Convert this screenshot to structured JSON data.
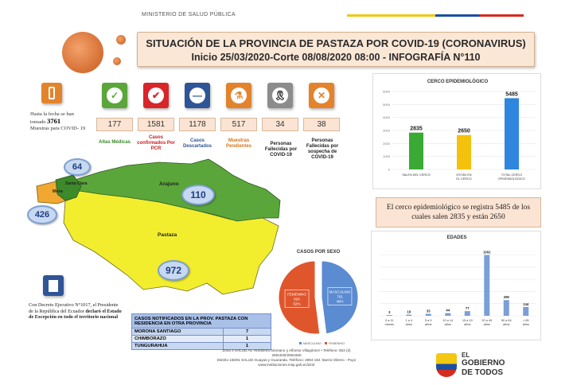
{
  "header": {
    "ministry": "MINISTERIO DE SALUD PÚBLICA",
    "title_line1": "SITUACIÓN DE LA PROVINCIA DE PASTAZA POR COVID-19 (CORONAVIRUS)",
    "title_line2": "Inicio 25/03/2020-Corte 08/08/2020 08:00 - INFOGRAFÍA N°110"
  },
  "side_note": {
    "prefix": "Hasta la fecha se han tomado",
    "value": "3761",
    "suffix": "Muestras para COVID- 19"
  },
  "stats": [
    {
      "value": "177",
      "caption": "Altas Médicas",
      "color": "#5aa63a",
      "caption_color": "#3c8a2a",
      "icon": "medical-discharge-icon"
    },
    {
      "value": "1581",
      "caption": "Casos confirmados Por PCR",
      "color": "#d8252a",
      "caption_color": "#c81d1d",
      "icon": "check-icon"
    },
    {
      "value": "1178",
      "caption": "Casos Descartados",
      "color": "#2f5597",
      "caption_color": "#2f5597",
      "icon": "minus-icon"
    },
    {
      "value": "517",
      "caption": "Muestras Pendientes",
      "color": "#e3832c",
      "caption_color": "#d4741a",
      "icon": "sample-pending-icon"
    },
    {
      "value": "34",
      "caption": "Personas Fallecidas por COVID-19",
      "color": "#8c8c8c",
      "caption_color": "#222",
      "icon": "mourning-ribbon-icon"
    },
    {
      "value": "38",
      "caption": "Personas Fallecidas por sospecha de COVID-19",
      "color": "#e3832c",
      "caption_color": "#222",
      "icon": "persons-x-icon"
    }
  ],
  "map": {
    "region_arajuno": "Arajuno",
    "region_pastaza": "Pastaza",
    "region_mera": "Mera",
    "region_santa_clara": "Santa Clara",
    "bubble_64": "64",
    "bubble_426": "426",
    "bubble_110": "110",
    "bubble_972": "972",
    "colors": {
      "arajuno": "#5aa63a",
      "pastaza": "#f2ee2e",
      "mera": "#f0a830",
      "santa_clara": "#5aa63a"
    }
  },
  "cerco_chart": {
    "chart_data": {
      "type": "bar",
      "title": "CERCO EPIDEMIOLÓGICO",
      "categories": [
        "SALEN DEL CERCO",
        "ESTÁN EN EL CERCO",
        "TOTAL CERCO EPIDEMIOLÓGICO"
      ],
      "values": [
        2835,
        2650,
        5485
      ],
      "colors": [
        "#3aaa35",
        "#f4c20d",
        "#2e86de"
      ],
      "yticks": [
        "0",
        "1000",
        "2000",
        "3000",
        "4000",
        "5000",
        "6000"
      ],
      "ylim": [
        0,
        6000
      ],
      "grid": true
    }
  },
  "cerco_info": "El cerco epidemiológico se registra 5485 de los cuales salen 2835 y están 2650",
  "sex_chart": {
    "chart_data": {
      "type": "pie",
      "title": "CASOS POR SEXO",
      "slices": [
        {
          "label": "FEMENINO",
          "value": "820",
          "pct": "52%",
          "fraction": 0.52,
          "color": "#e0562c"
        },
        {
          "label": "MASCULINO",
          "value": "761",
          "pct": "48%",
          "fraction": 0.48,
          "color": "#5b8bd0"
        }
      ],
      "legend": [
        "MASCULINO",
        "FEMENINO"
      ],
      "legend_placement": "bottom"
    }
  },
  "age_chart": {
    "chart_data": {
      "type": "bar",
      "title": "EDADES",
      "categories": [
        "0 a 11 meses",
        "1 a 4 años",
        "5 a 9 años",
        "10 a 14 años",
        "15 a 19 años",
        "20 a 49 años",
        "50 a 64 años",
        "> 65 años"
      ],
      "values": [
        3,
        19,
        33,
        44,
        77,
        1002,
        259,
        144
      ],
      "color": "#7b9fd6",
      "ylim": [
        0,
        1100
      ],
      "grid": true
    }
  },
  "decree": {
    "prefix": "Con Decreto Ejecutivo N°1017, el Presidente de la República del Ecuador",
    "bold": "declaró el Estado de Excepción en todo el territorio nacional"
  },
  "cases_table": {
    "header": "CASOS NOTIFICADOS EN LA PROV. PASTAZA CON RESIDENCIA EN OTRA PROVINCIA",
    "rows": [
      {
        "province": "MORONA SANTIAGO",
        "count": "7"
      },
      {
        "province": "CHIMBORAZO",
        "count": "1"
      },
      {
        "province": "TUNGURAHUA",
        "count": "1"
      }
    ]
  },
  "footer": {
    "line1": "Zona 3 SALUD Av. Humberto Moreano y Alfonso Villagómez • Teléfono: 563 (3)",
    "line2": "2961530/2961680",
    "line3": "Distrito 16D01 SALUD Guayas y Guaranda. Teléfono: 2894 182. Barrio Obrero - Puyo",
    "line4": "www.instituciones.msp.gob.ec/dz3/"
  },
  "gov_logo": {
    "line1": "EL",
    "line2": "GOBIERNO",
    "line3": "DE TODOS"
  }
}
